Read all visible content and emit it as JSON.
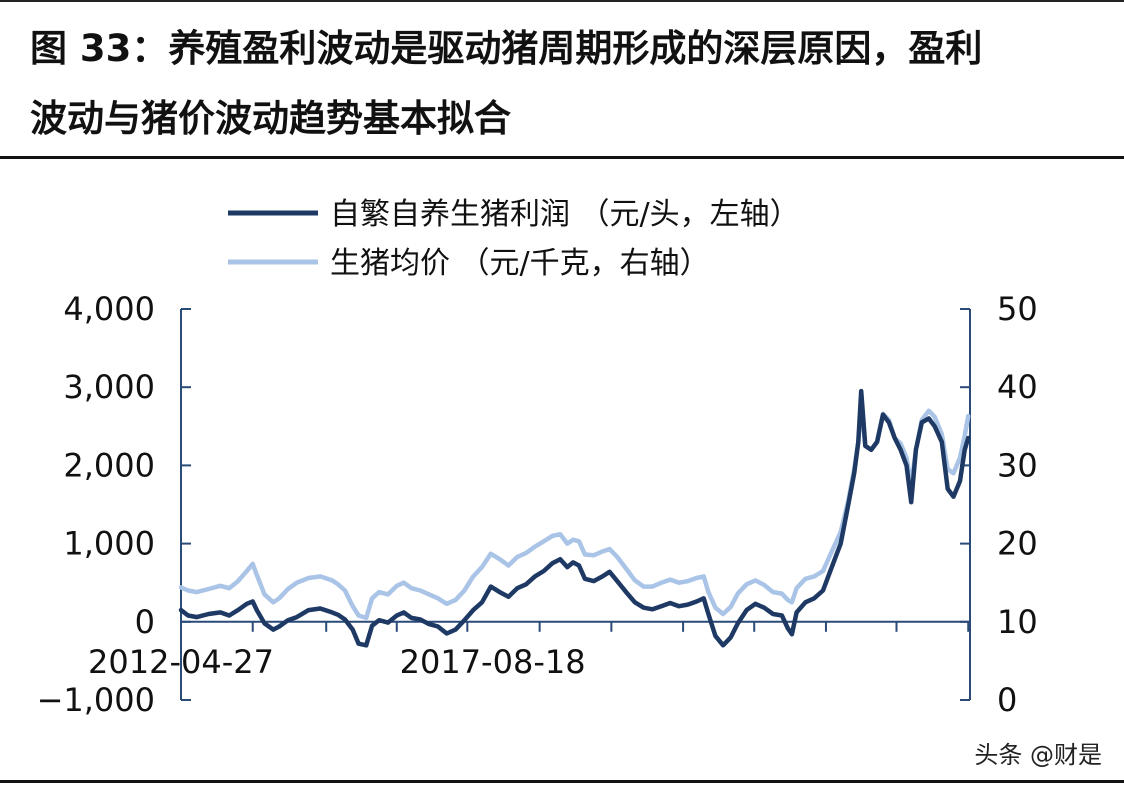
{
  "title": {
    "line1": "图 33：养殖盈利波动是驱动猪周期形成的深层原因，盈利",
    "line2": "波动与猪价波动趋势基本拟合"
  },
  "watermark": "头条 @财是",
  "chart_data": {
    "type": "line",
    "x": [
      "2012-04-27",
      "2017-08-18"
    ],
    "x_tick_labels": [
      "2012-04-27",
      "2017-08-18"
    ],
    "y_left": {
      "lim": [
        -1000,
        4000
      ],
      "ticks": [
        "−1,000",
        "0",
        "1,000",
        "2,000",
        "3,000",
        "4,000"
      ]
    },
    "y_right": {
      "lim": [
        0,
        50
      ],
      "ticks": [
        "0",
        "10",
        "20",
        "30",
        "40",
        "50"
      ]
    },
    "legend_position": "top-center",
    "grid": false,
    "series": [
      {
        "name": "自繁自养生猪利润 （元/头，左轴）",
        "axis": "left",
        "color": "#1e3a64",
        "points": [
          [
            2012.33,
            150
          ],
          [
            2012.45,
            80
          ],
          [
            2012.6,
            60
          ],
          [
            2012.8,
            100
          ],
          [
            2013.0,
            120
          ],
          [
            2013.15,
            80
          ],
          [
            2013.3,
            150
          ],
          [
            2013.45,
            230
          ],
          [
            2013.55,
            260
          ],
          [
            2013.62,
            150
          ],
          [
            2013.75,
            -20
          ],
          [
            2013.9,
            -100
          ],
          [
            2014.0,
            -60
          ],
          [
            2014.15,
            20
          ],
          [
            2014.3,
            60
          ],
          [
            2014.5,
            150
          ],
          [
            2014.7,
            170
          ],
          [
            2014.9,
            120
          ],
          [
            2015.0,
            90
          ],
          [
            2015.12,
            30
          ],
          [
            2015.25,
            -100
          ],
          [
            2015.35,
            -280
          ],
          [
            2015.48,
            -300
          ],
          [
            2015.58,
            -50
          ],
          [
            2015.7,
            20
          ],
          [
            2015.85,
            -10
          ],
          [
            2016.0,
            80
          ],
          [
            2016.12,
            120
          ],
          [
            2016.25,
            50
          ],
          [
            2016.4,
            30
          ],
          [
            2016.55,
            -30
          ],
          [
            2016.7,
            -60
          ],
          [
            2016.85,
            -150
          ],
          [
            2017.0,
            -100
          ],
          [
            2017.15,
            20
          ],
          [
            2017.3,
            150
          ],
          [
            2017.45,
            250
          ],
          [
            2017.6,
            450
          ],
          [
            2017.75,
            380
          ],
          [
            2017.9,
            320
          ],
          [
            2018.05,
            430
          ],
          [
            2018.2,
            480
          ],
          [
            2018.35,
            580
          ],
          [
            2018.5,
            650
          ],
          [
            2018.65,
            750
          ],
          [
            2018.78,
            800
          ],
          [
            2018.9,
            700
          ],
          [
            2019.0,
            760
          ],
          [
            2019.1,
            720
          ],
          [
            2019.2,
            550
          ],
          [
            2019.35,
            520
          ],
          [
            2019.5,
            580
          ],
          [
            2019.62,
            640
          ],
          [
            2019.75,
            520
          ],
          [
            2019.9,
            380
          ],
          [
            2020.05,
            250
          ],
          [
            2020.2,
            180
          ],
          [
            2020.35,
            160
          ],
          [
            2020.5,
            200
          ],
          [
            2020.65,
            240
          ],
          [
            2020.8,
            200
          ],
          [
            2020.95,
            220
          ],
          [
            2021.1,
            260
          ],
          [
            2021.22,
            300
          ],
          [
            2021.3,
            100
          ],
          [
            2021.42,
            -180
          ],
          [
            2021.55,
            -300
          ],
          [
            2021.68,
            -200
          ],
          [
            2021.8,
            -20
          ],
          [
            2021.95,
            150
          ],
          [
            2022.1,
            230
          ],
          [
            2022.25,
            180
          ],
          [
            2022.4,
            100
          ],
          [
            2022.55,
            80
          ],
          [
            2022.65,
            -80
          ],
          [
            2022.72,
            -160
          ],
          [
            2022.8,
            120
          ],
          [
            2022.95,
            250
          ],
          [
            2023.1,
            300
          ],
          [
            2023.25,
            400
          ],
          [
            2023.4,
            700
          ],
          [
            2023.55,
            1000
          ],
          [
            2023.68,
            1500
          ],
          [
            2023.78,
            1900
          ],
          [
            2023.85,
            2300
          ],
          [
            2023.9,
            2950
          ],
          [
            2023.97,
            2250
          ],
          [
            2024.07,
            2200
          ],
          [
            2024.17,
            2300
          ],
          [
            2024.27,
            2650
          ],
          [
            2024.37,
            2550
          ],
          [
            2024.47,
            2350
          ],
          [
            2024.57,
            2200
          ],
          [
            2024.67,
            2000
          ],
          [
            2024.75,
            1530
          ],
          [
            2024.83,
            2200
          ],
          [
            2024.93,
            2550
          ],
          [
            2025.05,
            2600
          ],
          [
            2025.15,
            2500
          ],
          [
            2025.27,
            2300
          ],
          [
            2025.37,
            1700
          ],
          [
            2025.47,
            1600
          ],
          [
            2025.58,
            1800
          ],
          [
            2025.66,
            2200
          ],
          [
            2025.72,
            2350
          ]
        ]
      },
      {
        "name": "生猪均价 （元/千克，右轴）",
        "axis": "right",
        "color": "#a9c4e6",
        "points": [
          [
            2012.33,
            14.4
          ],
          [
            2012.45,
            14.0
          ],
          [
            2012.6,
            13.8
          ],
          [
            2012.8,
            14.2
          ],
          [
            2013.0,
            14.6
          ],
          [
            2013.15,
            14.3
          ],
          [
            2013.3,
            15.2
          ],
          [
            2013.45,
            16.5
          ],
          [
            2013.55,
            17.4
          ],
          [
            2013.62,
            16.0
          ],
          [
            2013.75,
            13.5
          ],
          [
            2013.9,
            12.5
          ],
          [
            2014.0,
            13.0
          ],
          [
            2014.15,
            14.2
          ],
          [
            2014.3,
            15.0
          ],
          [
            2014.5,
            15.6
          ],
          [
            2014.7,
            15.8
          ],
          [
            2014.9,
            15.3
          ],
          [
            2015.0,
            14.8
          ],
          [
            2015.12,
            14.0
          ],
          [
            2015.25,
            12.0
          ],
          [
            2015.35,
            10.8
          ],
          [
            2015.48,
            10.5
          ],
          [
            2015.58,
            13.0
          ],
          [
            2015.7,
            13.8
          ],
          [
            2015.85,
            13.5
          ],
          [
            2016.0,
            14.6
          ],
          [
            2016.12,
            15.0
          ],
          [
            2016.25,
            14.3
          ],
          [
            2016.4,
            14.0
          ],
          [
            2016.55,
            13.5
          ],
          [
            2016.7,
            13.0
          ],
          [
            2016.85,
            12.3
          ],
          [
            2017.0,
            12.8
          ],
          [
            2017.15,
            14.0
          ],
          [
            2017.3,
            15.8
          ],
          [
            2017.45,
            17.0
          ],
          [
            2017.6,
            18.7
          ],
          [
            2017.75,
            18.0
          ],
          [
            2017.9,
            17.2
          ],
          [
            2018.05,
            18.3
          ],
          [
            2018.2,
            18.8
          ],
          [
            2018.35,
            19.6
          ],
          [
            2018.5,
            20.3
          ],
          [
            2018.65,
            21.0
          ],
          [
            2018.78,
            21.2
          ],
          [
            2018.9,
            20.0
          ],
          [
            2019.0,
            20.5
          ],
          [
            2019.1,
            20.3
          ],
          [
            2019.2,
            18.6
          ],
          [
            2019.35,
            18.5
          ],
          [
            2019.5,
            19.0
          ],
          [
            2019.62,
            19.3
          ],
          [
            2019.75,
            18.3
          ],
          [
            2019.9,
            16.8
          ],
          [
            2020.05,
            15.3
          ],
          [
            2020.2,
            14.5
          ],
          [
            2020.35,
            14.5
          ],
          [
            2020.5,
            15.0
          ],
          [
            2020.65,
            15.4
          ],
          [
            2020.8,
            15.0
          ],
          [
            2020.95,
            15.2
          ],
          [
            2021.1,
            15.6
          ],
          [
            2021.22,
            15.8
          ],
          [
            2021.3,
            13.8
          ],
          [
            2021.42,
            11.8
          ],
          [
            2021.55,
            11.0
          ],
          [
            2021.68,
            11.9
          ],
          [
            2021.8,
            13.6
          ],
          [
            2021.95,
            14.8
          ],
          [
            2022.1,
            15.3
          ],
          [
            2022.25,
            14.7
          ],
          [
            2022.4,
            13.8
          ],
          [
            2022.55,
            13.6
          ],
          [
            2022.65,
            12.8
          ],
          [
            2022.72,
            12.5
          ],
          [
            2022.8,
            14.3
          ],
          [
            2022.95,
            15.5
          ],
          [
            2023.1,
            15.8
          ],
          [
            2023.25,
            16.5
          ],
          [
            2023.4,
            19.0
          ],
          [
            2023.55,
            21.5
          ],
          [
            2023.68,
            25.5
          ],
          [
            2023.78,
            29.5
          ],
          [
            2023.85,
            33.0
          ],
          [
            2023.9,
            38.0
          ],
          [
            2023.97,
            32.5
          ],
          [
            2024.07,
            32.0
          ],
          [
            2024.17,
            33.0
          ],
          [
            2024.27,
            36.6
          ],
          [
            2024.37,
            35.8
          ],
          [
            2024.47,
            33.5
          ],
          [
            2024.57,
            32.8
          ],
          [
            2024.67,
            31.0
          ],
          [
            2024.75,
            27.5
          ],
          [
            2024.83,
            32.0
          ],
          [
            2024.93,
            35.8
          ],
          [
            2025.05,
            37.0
          ],
          [
            2025.15,
            36.2
          ],
          [
            2025.27,
            34.0
          ],
          [
            2025.37,
            29.5
          ],
          [
            2025.47,
            29.0
          ],
          [
            2025.58,
            31.0
          ],
          [
            2025.66,
            33.8
          ],
          [
            2025.72,
            36.3
          ]
        ]
      }
    ]
  }
}
